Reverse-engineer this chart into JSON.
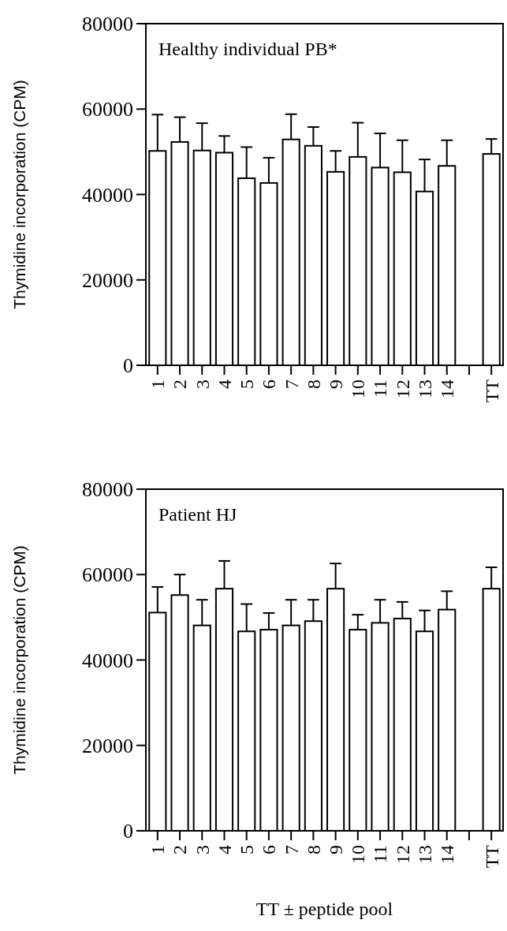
{
  "chart_data": [
    {
      "type": "bar",
      "title": "Healthy individual PB*",
      "ylabel": "Thymidine incorporation (CPM)",
      "categories": [
        "1",
        "2",
        "3",
        "4",
        "5",
        "6",
        "7",
        "8",
        "9",
        "10",
        "11",
        "12",
        "13",
        "14",
        null,
        "TT"
      ],
      "values": [
        50200,
        52300,
        50300,
        49800,
        43800,
        42700,
        52900,
        51400,
        45300,
        48800,
        46300,
        45200,
        40700,
        46700,
        null,
        49500
      ],
      "errors": [
        [
          50200,
          58700
        ],
        [
          52300,
          58100
        ],
        [
          50300,
          56700
        ],
        [
          49800,
          53700
        ],
        [
          43800,
          51100
        ],
        [
          42700,
          48600
        ],
        [
          52900,
          58800
        ],
        [
          51400,
          55800
        ],
        [
          45300,
          50200
        ],
        [
          48800,
          56800
        ],
        [
          46300,
          54300
        ],
        [
          45200,
          52700
        ],
        [
          40700,
          48200
        ],
        [
          46700,
          52700
        ],
        null,
        [
          49500,
          53000
        ]
      ],
      "color": "#ffffff",
      "ylim": [
        0,
        80000
      ],
      "yticks": [
        0,
        20000,
        40000,
        60000,
        80000
      ],
      "grid": false
    },
    {
      "type": "bar",
      "title": "Patient HJ",
      "ylabel": "Thymidine incorporation (CPM)",
      "xlabel": "TT ± peptide pool",
      "categories": [
        "1",
        "2",
        "3",
        "4",
        "5",
        "6",
        "7",
        "8",
        "9",
        "10",
        "11",
        "12",
        "13",
        "14",
        null,
        "TT"
      ],
      "values": [
        51100,
        55200,
        48100,
        56700,
        46700,
        47100,
        48100,
        49100,
        56700,
        47100,
        48700,
        49700,
        46700,
        51800,
        null,
        56700
      ],
      "errors": [
        [
          51100,
          57100
        ],
        [
          55200,
          60000
        ],
        [
          48100,
          54100
        ],
        [
          56700,
          63200
        ],
        [
          46700,
          53100
        ],
        [
          47100,
          51000
        ],
        [
          48100,
          54100
        ],
        [
          49100,
          54100
        ],
        [
          56700,
          62600
        ],
        [
          47100,
          50600
        ],
        [
          48700,
          54100
        ],
        [
          49700,
          53600
        ],
        [
          46700,
          51600
        ],
        [
          51800,
          56100
        ],
        null,
        [
          56700,
          61700
        ]
      ],
      "color": "#ffffff",
      "ylim": [
        0,
        80000
      ],
      "yticks": [
        0,
        20000,
        40000,
        60000,
        80000
      ],
      "grid": false
    }
  ]
}
